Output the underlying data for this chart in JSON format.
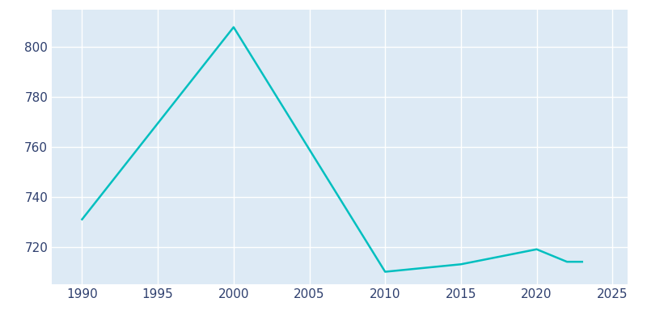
{
  "years": [
    1990,
    2000,
    2010,
    2015,
    2020,
    2022,
    2023
  ],
  "population": [
    731,
    808,
    710,
    713,
    719,
    714,
    714
  ],
  "line_color": "#00BFBF",
  "plot_bg_color": "#ddeaf5",
  "fig_bg_color": "#ffffff",
  "grid_color": "#ffffff",
  "tick_label_color": "#2e3f6e",
  "xlim": [
    1988,
    2026
  ],
  "ylim": [
    705,
    815
  ],
  "yticks": [
    720,
    740,
    760,
    780,
    800
  ],
  "xticks": [
    1990,
    1995,
    2000,
    2005,
    2010,
    2015,
    2020,
    2025
  ],
  "line_width": 1.8
}
